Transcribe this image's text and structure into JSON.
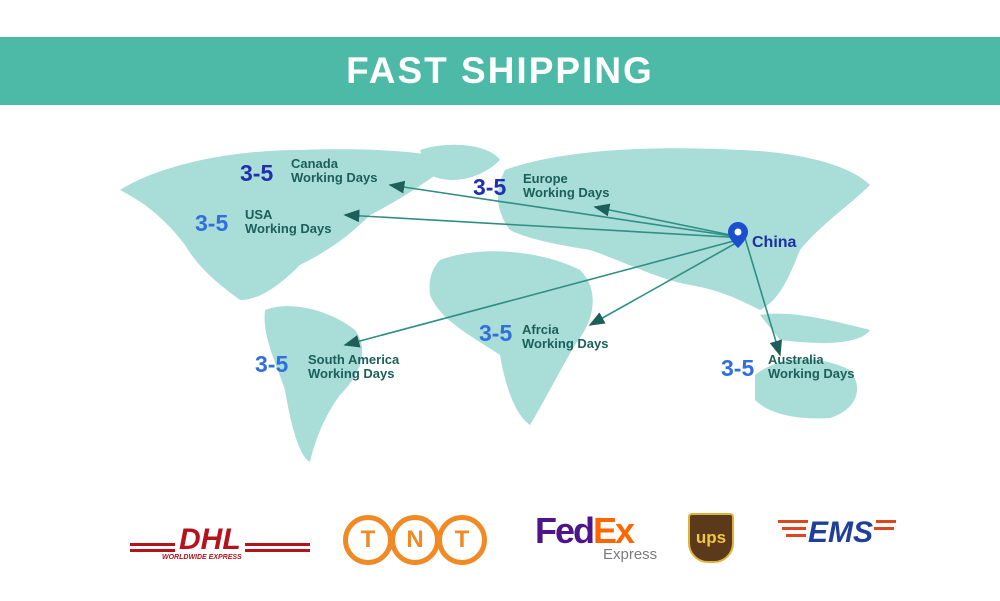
{
  "banner": {
    "title": "FAST SHIPPING",
    "color": "#4db9a7"
  },
  "map": {
    "land_color": "#a9ddd7",
    "arrow_color": "#2f8f86",
    "origin": "China",
    "origin_icon": "map-pin-icon"
  },
  "destinations": [
    {
      "key": "canada",
      "days": "3-5",
      "region": "Canada",
      "unit": "Working Days"
    },
    {
      "key": "usa",
      "days": "3-5",
      "region": "USA",
      "unit": "Working Days"
    },
    {
      "key": "europe",
      "days": "3-5",
      "region": "Europe",
      "unit": "Working Days"
    },
    {
      "key": "africa",
      "days": "3-5",
      "region": "Afrcia",
      "unit": "Working Days"
    },
    {
      "key": "south-america",
      "days": "3-5",
      "region": "South America",
      "unit": "Working Days"
    },
    {
      "key": "australia",
      "days": "3-5",
      "region": "Australia",
      "unit": "Working Days"
    }
  ],
  "carriers": [
    {
      "name": "DHL",
      "tagline": "WORLDWIDE EXPRESS",
      "color": "#b5121b"
    },
    {
      "name": "TNT",
      "color": "#f08a24"
    },
    {
      "name": "FedEx",
      "sub": "Express",
      "color_fed": "#4d148c",
      "color_ex": "#ff6600"
    },
    {
      "name": "ups",
      "color": "#5a3a1a"
    },
    {
      "name": "EMS",
      "color": "#1f3f99",
      "accent": "#e0461e"
    }
  ]
}
